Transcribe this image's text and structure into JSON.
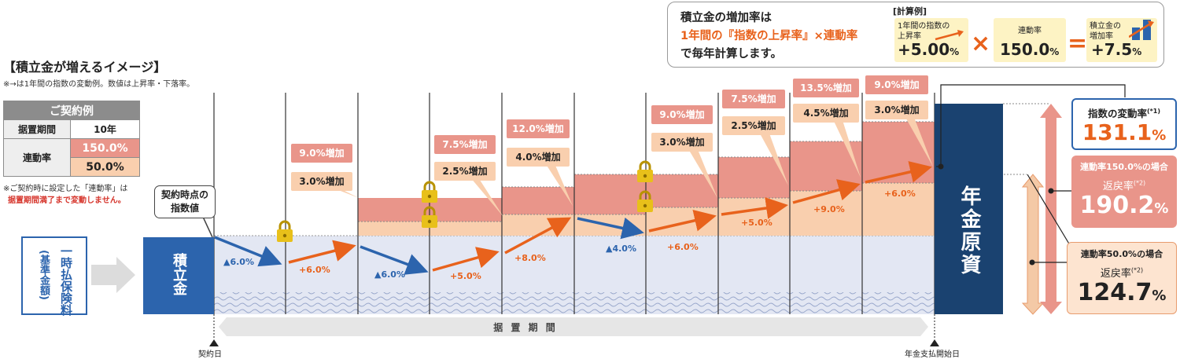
{
  "calc": {
    "line1": "積立金の増加率は",
    "line2": "1年間の『指数の上昇率』×連動率",
    "line3": "で毎年計算します。",
    "label": "[計算例]",
    "box1_text1": "1年間の指数の",
    "box1_text2": "上昇率",
    "box1_value": "+5.00",
    "box2_text": "連動率",
    "box2_value": "150.0",
    "box3_text1": "積立金の",
    "box3_text2": "増加率",
    "box3_value": "+7.5",
    "times": "×",
    "equals": "="
  },
  "title": "【積立金が増えるイメージ】",
  "note1": "※→は1年間の指数の変動例。数値は上昇率・下落率。",
  "contract": {
    "header": "ご契約例",
    "period_label": "据置期間",
    "period_value": "10年",
    "rate_label": "連動率",
    "rate_high": "150.0%",
    "rate_low": "50.0%"
  },
  "note2_line1": "※ご契約時に設定した「連動率」は",
  "note2_line2": "据置期間満了まで変動しません。",
  "bubble_line1": "契約時点の",
  "bubble_line2": "指数値",
  "premium_label": "一時払保険料",
  "premium_sub": "(基準金額)",
  "reserve_label": "積立金",
  "pension_label": "年金原資",
  "period_bar": "据 置 期 間",
  "contract_day": "契約日",
  "pension_start": "年金支払開始日",
  "years": [
    {
      "change": "▲6.0%",
      "up": false,
      "high": "",
      "low": ""
    },
    {
      "change": "+6.0%",
      "up": true,
      "high": "9.0%増加",
      "low": "3.0%増加"
    },
    {
      "change": "▲6.0%",
      "up": false,
      "high": "",
      "low": ""
    },
    {
      "change": "+5.0%",
      "up": true,
      "high": "7.5%増加",
      "low": "2.5%増加"
    },
    {
      "change": "+8.0%",
      "up": true,
      "high": "12.0%増加",
      "low": "4.0%増加"
    },
    {
      "change": "▲4.0%",
      "up": false,
      "high": "",
      "low": ""
    },
    {
      "change": "+6.0%",
      "up": true,
      "high": "9.0%増加",
      "low": "3.0%増加"
    },
    {
      "change": "+5.0%",
      "up": true,
      "high": "7.5%増加",
      "low": "2.5%増加"
    },
    {
      "change": "+9.0%",
      "up": true,
      "high": "13.5%増加",
      "low": "4.5%増加"
    },
    {
      "change": "+6.0%",
      "up": true,
      "high": "9.0%増加",
      "low": "3.0%増加"
    }
  ],
  "index_change": {
    "label": "指数の変動率",
    "note": "(*1)",
    "value": "131.1",
    "unit": "%"
  },
  "result_high": {
    "label": "連動率150.0%の場合",
    "sub": "返戻率",
    "note": "(*2)",
    "value": "190.2",
    "unit": "%"
  },
  "result_low": {
    "label": "連動率50.0%の場合",
    "sub": "返戻率",
    "note": "(*2)",
    "value": "124.7",
    "unit": "%"
  },
  "colors": {
    "blue": "#2c64ad",
    "navy": "#1a4270",
    "orange": "#e8621c",
    "salmon": "#e9958a",
    "peach": "#f9cfae",
    "base": "#e3e7f3"
  }
}
